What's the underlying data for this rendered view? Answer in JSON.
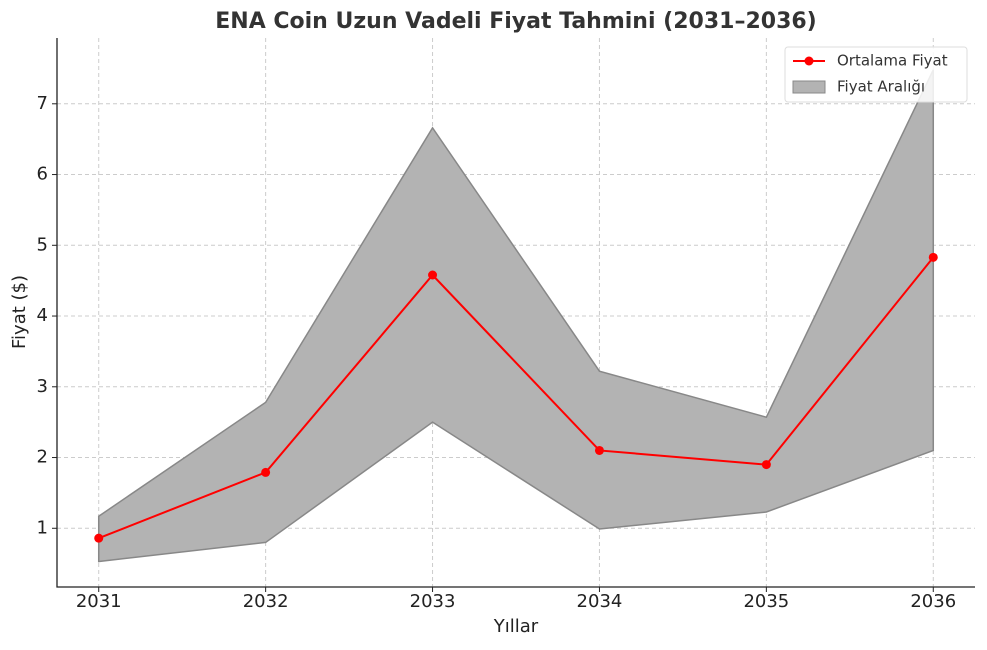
{
  "chart_data": {
    "type": "line",
    "title": "ENA Coin Uzun Vadeli Fiyat Tahmini (2031–2036)",
    "x_label": "Yıllar",
    "y_label": "Fiyat ($)",
    "x": [
      2031,
      2032,
      2033,
      2034,
      2035,
      2036
    ],
    "series": [
      {
        "name": "Ortalama Fiyat",
        "color": "#ff0000",
        "values": [
          0.86,
          1.79,
          4.58,
          2.1,
          1.9,
          4.83
        ]
      }
    ],
    "band": {
      "name": "Fiyat Aralığı",
      "color": "#b3b3b3",
      "edge_color": "#888888",
      "upper": [
        1.17,
        2.78,
        6.66,
        3.22,
        2.57,
        7.48
      ],
      "lower": [
        0.53,
        0.8,
        2.5,
        0.99,
        1.23,
        2.1
      ]
    },
    "xlim": [
      2030.75,
      2036.25
    ],
    "xticks": [
      2031,
      2032,
      2033,
      2034,
      2035,
      2036
    ],
    "ylim": [
      0.17,
      7.93
    ],
    "yticks": [
      1,
      2,
      3,
      4,
      5,
      6,
      7
    ],
    "grid": true,
    "legend": "upper right"
  }
}
